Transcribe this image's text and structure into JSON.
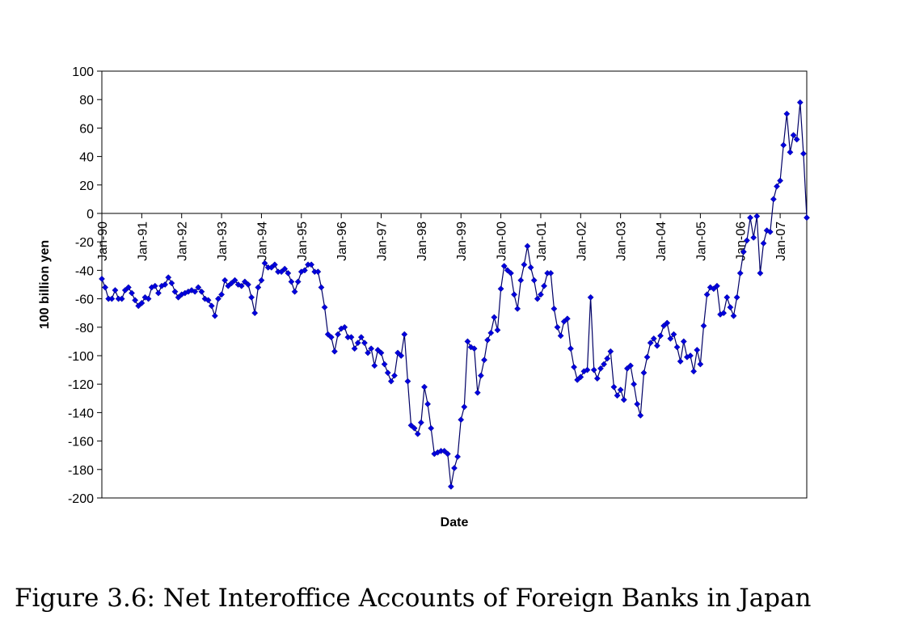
{
  "caption": "Figure 3.6: Net Interoffice Accounts of Foreign Banks in Japan",
  "chart_data": {
    "type": "line",
    "title": "",
    "xlabel": "Date",
    "ylabel": "100 billion yen",
    "ylim": [
      -200,
      100
    ],
    "y_ticks": [
      "100",
      "80",
      "60",
      "40",
      "20",
      "0",
      "-20",
      "-40",
      "-60",
      "-80",
      "-100",
      "-120",
      "-140",
      "-160",
      "-180",
      "-200"
    ],
    "x_ticks": [
      "Jan-90",
      "Jan-91",
      "Jan-92",
      "Jan-93",
      "Jan-94",
      "Jan-95",
      "Jan-96",
      "Jan-97",
      "Jan-98",
      "Jan-99",
      "Jan-00",
      "Jan-01",
      "Jan-02",
      "Jan-03",
      "Jan-04",
      "Jan-05",
      "Jan-06",
      "Jan-07"
    ],
    "grid": false,
    "legend": "none",
    "series_color": "#0000dd",
    "marker": "diamond",
    "x_start": "Jan-90",
    "x_frequency": "monthly",
    "values": [
      -46,
      -52,
      -60,
      -60,
      -54,
      -60,
      -60,
      -54,
      -52,
      -56,
      -61,
      -65,
      -63,
      -59,
      -60,
      -52,
      -51,
      -56,
      -51,
      -50,
      -45,
      -49,
      -55,
      -59,
      -57,
      -56,
      -55,
      -54,
      -55,
      -52,
      -55,
      -60,
      -61,
      -65,
      -72,
      -60,
      -57,
      -47,
      -51,
      -49,
      -47,
      -50,
      -51,
      -48,
      -50,
      -59,
      -70,
      -52,
      -47,
      -35,
      -38,
      -38,
      -36,
      -41,
      -41,
      -39,
      -42,
      -48,
      -55,
      -48,
      -41,
      -40,
      -36,
      -36,
      -41,
      -41,
      -52,
      -66,
      -85,
      -87,
      -97,
      -85,
      -81,
      -80,
      -87,
      -87,
      -95,
      -91,
      -87,
      -91,
      -98,
      -95,
      -107,
      -96,
      -98,
      -106,
      -112,
      -118,
      -114,
      -98,
      -100,
      -85,
      -118,
      -149,
      -151,
      -155,
      -147,
      -122,
      -134,
      -151,
      -169,
      -168,
      -167,
      -167,
      -169,
      -192,
      -179,
      -171,
      -145,
      -136,
      -90,
      -94,
      -95,
      -126,
      -114,
      -103,
      -89,
      -84,
      -73,
      -82,
      -53,
      -37,
      -40,
      -42,
      -57,
      -67,
      -47,
      -36,
      -23,
      -38,
      -47,
      -60,
      -57,
      -51,
      -42,
      -42,
      -67,
      -80,
      -86,
      -76,
      -74,
      -95,
      -108,
      -117,
      -115,
      -111,
      -110,
      -59,
      -110,
      -116,
      -109,
      -106,
      -102,
      -97,
      -122,
      -128,
      -124,
      -131,
      -109,
      -107,
      -120,
      -134,
      -142,
      -112,
      -101,
      -91,
      -88,
      -93,
      -86,
      -79,
      -77,
      -88,
      -85,
      -94,
      -104,
      -90,
      -101,
      -100,
      -111,
      -96,
      -106,
      -79,
      -57,
      -52,
      -53,
      -51,
      -71,
      -70,
      -59,
      -66,
      -72,
      -59,
      -42,
      -27,
      -19,
      -3,
      -17,
      -2,
      -42,
      -21,
      -12,
      -13,
      10,
      19,
      23,
      48,
      70,
      43,
      55,
      52,
      78,
      42,
      -3
    ]
  }
}
